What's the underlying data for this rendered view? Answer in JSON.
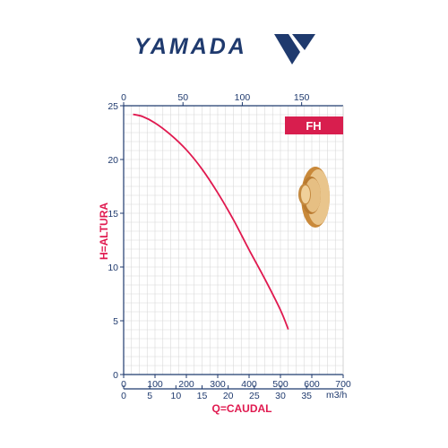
{
  "brand": {
    "name": "YAMADA",
    "color": "#1f3a6e"
  },
  "colors": {
    "axis": "#1f3a6e",
    "curve": "#e0194f",
    "grid": "#d8d8d8",
    "badge": "#d81e4e"
  },
  "chart_data": {
    "type": "line",
    "badge": "FH",
    "ylabel": "H=ALTURA",
    "xlabel": "Q=CAUDAL",
    "ylim": [
      0,
      25
    ],
    "yticks": [
      "0",
      "5",
      "10",
      "15",
      "20",
      "25"
    ],
    "x_lpm_lim": [
      0,
      700
    ],
    "x_lpm_ticks": [
      "0",
      "100",
      "200",
      "300",
      "400",
      "500",
      "600",
      "700"
    ],
    "x_m3h_ticks": [
      "0",
      "5",
      "10",
      "15",
      "20",
      "25",
      "30",
      "35"
    ],
    "x_m3h_unit": "m3/h",
    "top_lim": [
      0,
      185
    ],
    "top_ticks": [
      "0",
      "50",
      "100",
      "150"
    ],
    "grid": true,
    "series": [
      {
        "x": [
          30,
          60,
          100,
          150,
          200,
          250,
          300,
          350,
          400,
          450,
          500,
          525
        ],
        "y": [
          24.2,
          24.0,
          23.4,
          22.3,
          20.9,
          19.1,
          16.9,
          14.4,
          11.6,
          8.9,
          6.0,
          4.2
        ]
      }
    ]
  }
}
